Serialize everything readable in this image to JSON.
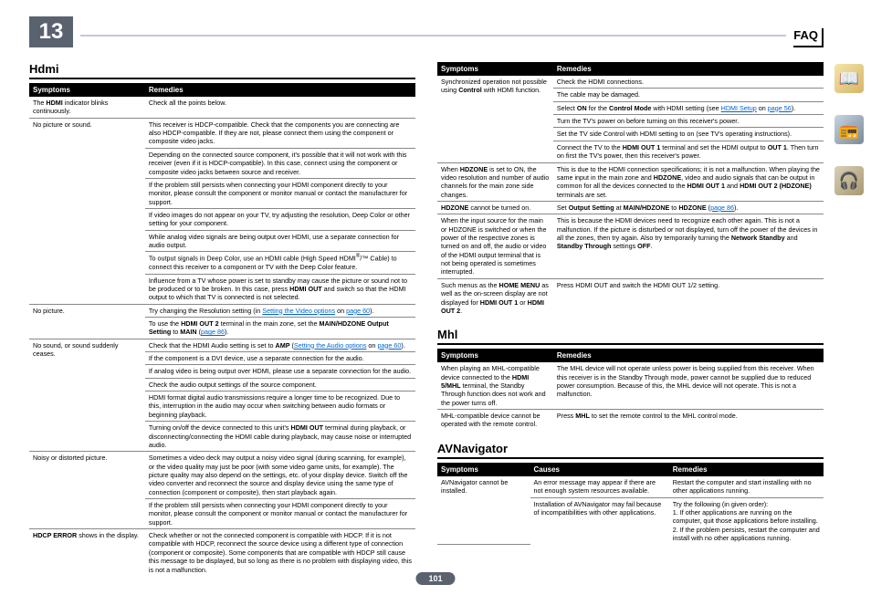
{
  "chapter": "13",
  "faq_label": "FAQ",
  "page_num": "101",
  "headings": {
    "hdmi": "Hdmi",
    "mhl": "Mhl",
    "avn": "AVNavigator"
  },
  "th": {
    "symptoms": "Symptoms",
    "remedies": "Remedies",
    "causes": "Causes"
  },
  "hdmi": {
    "r1s": "The <b>HDMI</b> indicator blinks continuously.",
    "r1r": "Check all the points below.",
    "r2s": "No picture or sound.",
    "r2r1": "This receiver is HDCP-compatible. Check that the components you are connecting are also HDCP-compatible. If they are not, please connect them using the component or composite video jacks.",
    "r2r2": "Depending on the connected source component, it's possible that it will not work with this receiver (even if it is HDCP-compatible). In this case, connect using the component or composite video jacks between source and receiver.",
    "r2r3": "If the problem still persists when connecting your HDMI component directly to your monitor, please consult the component or monitor manual or contact the manufacturer for support.",
    "r2r4": "If video images do not appear on your TV, try adjusting the resolution, Deep Color or other setting for your component.",
    "r2r5": "While analog video signals are being output over HDMI, use a separate connection for audio output.",
    "r2r6": "To output signals in Deep Color, use an HDMI cable (High Speed HDMI<sup>®</sup>/™ Cable) to connect this receiver to a component or TV with the Deep Color feature.",
    "r2r7": "Influence from a TV whose power is set to standby may cause the picture or sound not to be produced or to be broken. In this case, press <b>HDMI OUT</b> and switch so that the HDMI output to which that TV is connected is not selected.",
    "r3s": "No picture.",
    "r3r1": "Try changing the Resolution setting (in <a href='#'>Setting the Video options</a> on <a href='#'>page 60</a>).",
    "r3r2": "To use the <b>HDMI OUT 2</b> terminal in the main zone, set the <b>MAIN/HDZONE Output Setting</b> to <b>MAIN</b> (<a href='#'>page 86</a>).",
    "r4s": "No sound, or sound suddenly ceases.",
    "r4r1": "Check that the HDMI Audio setting is set to <b>AMP</b> (<a href='#'>Setting the Audio options</a> on <a href='#'>page 60</a>).",
    "r4r2": "If the component is a DVI device, use a separate connection for the audio.",
    "r4r3": "If analog video is being output over HDMI, please use a separate connection for the audio.",
    "r4r4": "Check the audio output settings of the source component.",
    "r4r5": "HDMI format digital audio transmissions require a longer time to be recognized. Due to this, interruption in the audio may occur when switching between audio formats or beginning playback.",
    "r4r6": "Turning on/off the device connected to this unit's <b>HDMI OUT</b> terminal during playback, or disconnecting/connecting the HDMI cable during playback, may cause noise or interrupted audio.",
    "r5s": "Noisy or distorted picture.",
    "r5r1": "Sometimes a video deck may output a noisy video signal (during scanning, for example), or the video quality may just be poor (with some video game units, for example). The picture quality may also depend on the settings, etc. of your display device. Switch off the video converter and reconnect the source and display device using the same type of connection (component or composite), then start playback again.",
    "r5r2": "If the problem still persists when connecting your HDMI component directly to your monitor, please consult the component or monitor manual or contact the manufacturer for support.",
    "r6s": "<b>HDCP ERROR</b> shows in the display.",
    "r6r": "Check whether or not the connected component is compatible with HDCP. If it is not compatible with HDCP, reconnect the source device using a different type of connection (component or composite). Some components that are compatible with HDCP still cause this message to be displayed, but so long as there is no problem with displaying video, this is not a malfunction."
  },
  "right": {
    "r1s": "Synchronized operation not possible using <b>Control</b> with HDMI function.",
    "r1r1": "Check the HDMI connections.",
    "r1r2": "The cable may be damaged.",
    "r1r3": "Select <b>ON</b> for the <b>Control Mode</b> with HDMI setting (see <a href='#'>HDMI Setup</a> on <a href='#'>page 56</a>).",
    "r1r4": "Turn the TV's power on before turning on this receiver's power.",
    "r1r5": "Set the TV side Control with HDMI setting to on (see TV's operating instructions).",
    "r1r6": "Connect the TV to the <b>HDMI OUT 1</b> terminal and set the HDMI output to <b>OUT 1</b>. Then turn on first the TV's power, then this receiver's power.",
    "r2s": "When <b>HDZONE</b> is set to ON, the video resolution and number of audio channels for the main zone side changes.",
    "r2r": "This is due to the HDMI connection specifications; it is not a malfunction. When playing the same input in the main zone and <b>HDZONE</b>, video and audio signals that can be output in common for all the devices connected to the <b>HDMI OUT 1</b> and <b>HDMI OUT 2 (HDZONE)</b> terminals are set.",
    "r3s": "<b>HDZONE</b> cannot be turned on.",
    "r3r": "Set <b>Output Setting</b> at <b>MAIN/HDZONE</b> to <b>HDZONE</b> (<a href='#'>page 86</a>).",
    "r4s": "When the input source for the main or HDZONE is switched or when the power of the respective zones is turned on and off, the audio or video of the HDMI output terminal that is not being operated is sometimes interrupted.",
    "r4r": "This is because the HDMI devices need to recognize each other again. This is not a malfunction. If the picture is disturbed or not displayed, turn off the power of the devices in all the zones, then try again. Also try temporarily turning the <b>Network Standby</b> and <b>Standby Through</b> settings <b>OFF</b>.",
    "r5s": "Such menus as the <b>HOME MENU</b> as well as the on-screen display are not displayed for <b>HDMI OUT 1</b> or <b>HDMI OUT 2</b>.",
    "r5r": "Press HDMI OUT and switch the HDMI OUT 1/2 setting."
  },
  "mhl": {
    "r1s": "When playing an MHL-compatible device connected to the <b>HDMI 5/MHL</b> terminal, the Standby Through function does not work and the power turns off.",
    "r1r": "The MHL device will not operate unless power is being supplied from this receiver. When this receiver is in the Standby Through mode, power cannot be supplied due to reduced power consumption. Because of this, the MHL device will not operate. This is not a malfunction.",
    "r2s": "MHL-compatible device cannot be operated with the remote control.",
    "r2r": "Press <b>MHL</b> to set the remote control to the MHL control mode."
  },
  "avn": {
    "r1s": "AVNavigator cannot be installed.",
    "r1c1": "An error message may appear if there are not enough system resources available.",
    "r1r1": "Restart the computer and start installing with no other applications running.",
    "r1c2": "Installation of AVNavigator may fail because of incompatibilities with other applications.",
    "r1r2": "Try the following (in given order):<br>1. If other applications are running on the computer, quit those applications before installing.<br>2. If the problem persists, restart the computer and install with no other applications running."
  },
  "icons": {
    "i1": "📖",
    "i2": "📻",
    "i3": "🎧"
  }
}
